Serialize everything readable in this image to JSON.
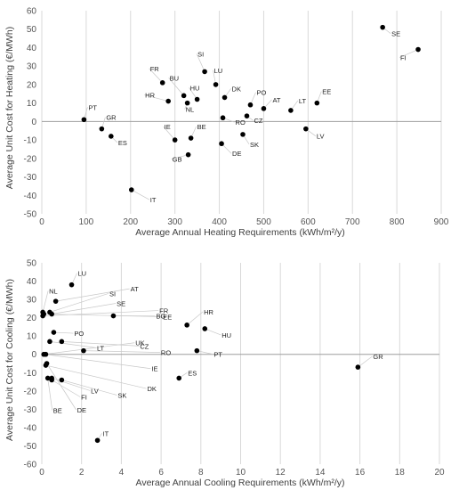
{
  "chart_data": [
    {
      "type": "scatter",
      "xlabel": "Average Annual Heating Requirements (kWh/m²/y)",
      "ylabel": "Average Unit Cost for Heating (€/MWh)",
      "xlim": [
        0,
        900
      ],
      "ylim": [
        -50,
        60
      ],
      "x_ticks": [
        "0",
        "100",
        "200",
        "300",
        "400",
        "500",
        "600",
        "700",
        "800",
        "900"
      ],
      "y_ticks": [
        "-50",
        "-40",
        "-30",
        "-20",
        "-10",
        "0",
        "10",
        "20",
        "30",
        "40",
        "50",
        "60"
      ],
      "grid": "vertical",
      "points": [
        {
          "label": "SE",
          "x": 768,
          "y": 51
        },
        {
          "label": "FI",
          "x": 848,
          "y": 39
        },
        {
          "label": "SI",
          "x": 367,
          "y": 27
        },
        {
          "label": "FR",
          "x": 272,
          "y": 21
        },
        {
          "label": "LU",
          "x": 392,
          "y": 20
        },
        {
          "label": "BU",
          "x": 320,
          "y": 14
        },
        {
          "label": "HU",
          "x": 350,
          "y": 12
        },
        {
          "label": "DK",
          "x": 412,
          "y": 13
        },
        {
          "label": "HR",
          "x": 285,
          "y": 11
        },
        {
          "label": "NL",
          "x": 328,
          "y": 10
        },
        {
          "label": "PO",
          "x": 470,
          "y": 9
        },
        {
          "label": "AT",
          "x": 500,
          "y": 7
        },
        {
          "label": "LT",
          "x": 561,
          "y": 6
        },
        {
          "label": "EE",
          "x": 620,
          "y": 10
        },
        {
          "label": "CZ",
          "x": 462,
          "y": 3
        },
        {
          "label": "RO",
          "x": 408,
          "y": 2
        },
        {
          "label": "PT",
          "x": 95,
          "y": 1
        },
        {
          "label": "GR",
          "x": 135,
          "y": -4
        },
        {
          "label": "LV",
          "x": 595,
          "y": -4
        },
        {
          "label": "ES",
          "x": 156,
          "y": -8
        },
        {
          "label": "SK",
          "x": 453,
          "y": -7
        },
        {
          "label": "IE",
          "x": 300,
          "y": -10
        },
        {
          "label": "BE",
          "x": 336,
          "y": -9
        },
        {
          "label": "DE",
          "x": 405,
          "y": -12
        },
        {
          "label": "GB",
          "x": 330,
          "y": -18
        },
        {
          "label": "IT",
          "x": 202,
          "y": -37
        }
      ]
    },
    {
      "type": "scatter",
      "xlabel": "Average Annual Cooling Requirements (kWh/m²/y)",
      "ylabel": "Average Unit Cost for Cooling (€/MWh)",
      "xlim": [
        0,
        20
      ],
      "ylim": [
        -60,
        50
      ],
      "x_ticks": [
        "0",
        "2",
        "4",
        "6",
        "8",
        "10",
        "12",
        "14",
        "16",
        "18",
        "20"
      ],
      "y_ticks": [
        "-60",
        "-50",
        "-40",
        "-30",
        "-20",
        "-10",
        "0",
        "10",
        "20",
        "30",
        "40",
        "50"
      ],
      "grid": "vertical",
      "points": [
        {
          "label": "NL",
          "x": 0.05,
          "y": 23
        },
        {
          "label": "LU",
          "x": 1.5,
          "y": 38
        },
        {
          "label": "SI",
          "x": 0.4,
          "y": 23
        },
        {
          "label": "AT",
          "x": 0.7,
          "y": 29
        },
        {
          "label": "FR",
          "x": 0.05,
          "y": 21
        },
        {
          "label": "SE",
          "x": 0.5,
          "y": 22
        },
        {
          "label": "EE",
          "x": 0.1,
          "y": 22
        },
        {
          "label": "BG",
          "x": 3.6,
          "y": 21
        },
        {
          "label": "PO",
          "x": 0.6,
          "y": 12
        },
        {
          "label": "LT",
          "x": 0.4,
          "y": 7
        },
        {
          "label": "CZ",
          "x": 1.0,
          "y": 7
        },
        {
          "label": "UK",
          "x": 0.1,
          "y": 0
        },
        {
          "label": "RO",
          "x": 2.1,
          "y": 2
        },
        {
          "label": "IE",
          "x": 0.2,
          "y": 0
        },
        {
          "label": "DK",
          "x": 0.2,
          "y": -6
        },
        {
          "label": "LV",
          "x": 0.5,
          "y": -13
        },
        {
          "label": "SK",
          "x": 1.0,
          "y": -14
        },
        {
          "label": "FI",
          "x": 0.5,
          "y": -14
        },
        {
          "label": "BE",
          "x": 0.3,
          "y": -13
        },
        {
          "label": "DE",
          "x": 0.25,
          "y": -5
        },
        {
          "label": "IT",
          "x": 2.8,
          "y": -47
        },
        {
          "label": "HR",
          "x": 7.3,
          "y": 16
        },
        {
          "label": "HU",
          "x": 8.2,
          "y": 14
        },
        {
          "label": "PT",
          "x": 7.8,
          "y": 2
        },
        {
          "label": "ES",
          "x": 6.9,
          "y": -13
        },
        {
          "label": "GR",
          "x": 15.9,
          "y": -7
        }
      ]
    }
  ]
}
